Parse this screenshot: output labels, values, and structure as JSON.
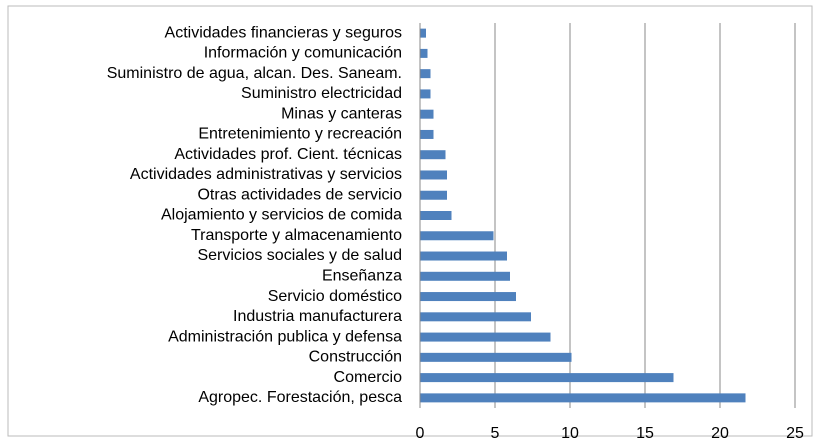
{
  "chart_data": {
    "type": "barh",
    "categories": [
      "Actividades financieras y seguros",
      "Información y comunicación",
      "Suministro de agua, alcan. Des. Saneam.",
      "Suministro electricidad",
      "Minas y canteras",
      "Entretenimiento y recreación",
      "Actividades prof. Cient. técnicas",
      "Actividades administrativas y servicios",
      "Otras actividades de servicio",
      "Alojamiento y servicios de comida",
      "Transporte y almacenamiento",
      "Servicios sociales y de salud",
      "Enseñanza",
      "Servicio doméstico",
      "Industria manufacturera",
      "Administración publica y defensa",
      "Construcción",
      "Comercio",
      "Agropec. Forestación, pesca"
    ],
    "values": [
      0.4,
      0.5,
      0.7,
      0.7,
      0.9,
      0.9,
      1.7,
      1.8,
      1.8,
      2.1,
      4.9,
      5.8,
      6.0,
      6.4,
      7.4,
      8.7,
      10.1,
      16.9,
      21.7
    ],
    "color": "#4f81bd",
    "xlim": [
      0,
      25
    ],
    "xticks": [
      0,
      5,
      10,
      15,
      20,
      25
    ],
    "grid": true
  }
}
